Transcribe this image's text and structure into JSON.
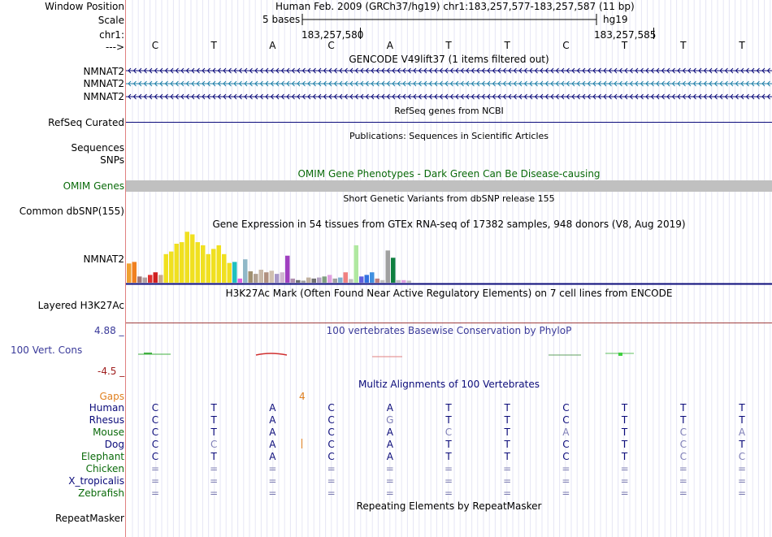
{
  "header": {
    "window_position_label": "Window Position",
    "scale_label": "Scale",
    "chrom_label": "chr1:",
    "arrow_label": "--->",
    "assembly_text": "Human Feb. 2009 (GRCh37/hg19)   chr1:183,257,577-183,257,587 (11 bp)",
    "scale_text": "5 bases",
    "scale_db": "hg19",
    "pos_left": "183,257,580",
    "pos_right": "183,257,585",
    "bases": [
      "C",
      "T",
      "A",
      "C",
      "A",
      "T",
      "T",
      "C",
      "T",
      "T",
      "T"
    ]
  },
  "gencode": {
    "title": "GENCODE V49lift37 (1 items filtered out)",
    "rows": [
      {
        "label": "NMNAT2",
        "color": "#0b0b7a"
      },
      {
        "label": "NMNAT2",
        "color": "#1e7fa8"
      },
      {
        "label": "NMNAT2",
        "color": "#0b0b7a"
      }
    ]
  },
  "refseq": {
    "title": "RefSeq genes from NCBI",
    "label": "RefSeq Curated"
  },
  "publications": {
    "title": "Publications: Sequences in Scientific Articles",
    "label1": "Sequences",
    "label2": "SNPs"
  },
  "omim": {
    "title": "OMIM Gene Phenotypes - Dark Green Can Be Disease-causing",
    "label": "OMIM Genes"
  },
  "dbsnp": {
    "title": "Short Genetic Variants from dbSNP release 155",
    "label": "Common dbSNP(155)"
  },
  "gtex": {
    "title": "Gene Expression in 54 tissues from GTEx RNA-seq of 17382 samples, 948 donors (V8, Aug 2019)",
    "label": "NMNAT2",
    "bars": [
      {
        "v": 0.37,
        "c": "#f0a030"
      },
      {
        "v": 0.4,
        "c": "#f08020"
      },
      {
        "v": 0.12,
        "c": "#a07878"
      },
      {
        "v": 0.1,
        "c": "#b0a0a0"
      },
      {
        "v": 0.15,
        "c": "#e03030"
      },
      {
        "v": 0.2,
        "c": "#d02020"
      },
      {
        "v": 0.15,
        "c": "#c8a890"
      },
      {
        "v": 0.55,
        "c": "#f0e020"
      },
      {
        "v": 0.6,
        "c": "#f0e020"
      },
      {
        "v": 0.75,
        "c": "#f0e020"
      },
      {
        "v": 0.78,
        "c": "#f0e020"
      },
      {
        "v": 0.98,
        "c": "#f0e020"
      },
      {
        "v": 0.93,
        "c": "#f0e020"
      },
      {
        "v": 0.78,
        "c": "#f0e020"
      },
      {
        "v": 0.72,
        "c": "#f0e020"
      },
      {
        "v": 0.55,
        "c": "#f0e020"
      },
      {
        "v": 0.65,
        "c": "#f0e020"
      },
      {
        "v": 0.72,
        "c": "#f0e020"
      },
      {
        "v": 0.55,
        "c": "#f0e020"
      },
      {
        "v": 0.38,
        "c": "#f0e020"
      },
      {
        "v": 0.4,
        "c": "#20c0c0"
      },
      {
        "v": 0.08,
        "c": "#e060e0"
      },
      {
        "v": 0.45,
        "c": "#90b8c8"
      },
      {
        "v": 0.22,
        "c": "#a09070"
      },
      {
        "v": 0.17,
        "c": "#b0a090"
      },
      {
        "v": 0.25,
        "c": "#c8b8a8"
      },
      {
        "v": 0.2,
        "c": "#b09080"
      },
      {
        "v": 0.23,
        "c": "#d0c0b0"
      },
      {
        "v": 0.17,
        "c": "#a898c8"
      },
      {
        "v": 0.2,
        "c": "#d0b8d0"
      },
      {
        "v": 0.52,
        "c": "#a040c0"
      },
      {
        "v": 0.08,
        "c": "#b090b0"
      },
      {
        "v": 0.05,
        "c": "#707070"
      },
      {
        "v": 0.04,
        "c": "#a0a0a0"
      },
      {
        "v": 0.1,
        "c": "#c0b0a0"
      },
      {
        "v": 0.08,
        "c": "#707070"
      },
      {
        "v": 0.1,
        "c": "#b0a0c0"
      },
      {
        "v": 0.12,
        "c": "#80a080"
      },
      {
        "v": 0.15,
        "c": "#e0a0e0"
      },
      {
        "v": 0.08,
        "c": "#a0a0a0"
      },
      {
        "v": 0.1,
        "c": "#80b0d0"
      },
      {
        "v": 0.2,
        "c": "#f08080"
      },
      {
        "v": 0.07,
        "c": "#c0c0c0"
      },
      {
        "v": 0.72,
        "c": "#b0e8a0"
      },
      {
        "v": 0.12,
        "c": "#6060e0"
      },
      {
        "v": 0.15,
        "c": "#3070e0"
      },
      {
        "v": 0.2,
        "c": "#4090e0"
      },
      {
        "v": 0.08,
        "c": "#c08080"
      },
      {
        "v": 0.05,
        "c": "#c0c0c0"
      },
      {
        "v": 0.62,
        "c": "#a0a0a0"
      },
      {
        "v": 0.48,
        "c": "#108040"
      },
      {
        "v": 0.05,
        "c": "#c0c0c0"
      },
      {
        "v": 0.05,
        "c": "#e0a0e0"
      },
      {
        "v": 0.04,
        "c": "#c0c0c0"
      }
    ]
  },
  "h3k27ac": {
    "title": "H3K27Ac Mark (Often Found Near Active Regulatory Elements) on 7 cell lines from ENCODE",
    "label": "Layered H3K27Ac"
  },
  "phylop": {
    "title": "100 vertebrates Basewise Conservation by PhyloP",
    "label": "100 Vert. Cons",
    "max": "4.88 _",
    "min": "-4.5 _"
  },
  "multiz": {
    "title": "Multiz Alignments of 100 Vertebrates",
    "gaps_label": "Gaps",
    "gap_value": "4",
    "species": [
      {
        "name": "Human",
        "color": "#0b0b7a",
        "bases": [
          "C",
          "T",
          "A",
          "C",
          "A",
          "T",
          "T",
          "C",
          "T",
          "T",
          "T"
        ]
      },
      {
        "name": "Rhesus",
        "color": "#0b0b7a",
        "bases": [
          "C",
          "T",
          "A",
          "C",
          "G",
          "T",
          "T",
          "C",
          "T",
          "T",
          "T"
        ]
      },
      {
        "name": "Mouse",
        "color": "#0a6a0a",
        "bases": [
          "C",
          "T",
          "A",
          "C",
          "A",
          "C",
          "T",
          "A",
          "T",
          "C",
          "A"
        ]
      },
      {
        "name": "Dog",
        "color": "#0b0b7a",
        "bases": [
          "C",
          "C",
          "A",
          "C",
          "A",
          "T",
          "T",
          "C",
          "T",
          "C",
          "T"
        ]
      },
      {
        "name": "Elephant",
        "color": "#0a6a0a",
        "bases": [
          "C",
          "T",
          "A",
          "C",
          "A",
          "T",
          "T",
          "C",
          "T",
          "C",
          "C"
        ]
      },
      {
        "name": "Chicken",
        "color": "#0a6a0a",
        "bases": [
          "=",
          "=",
          "=",
          "=",
          "=",
          "=",
          "=",
          "=",
          "=",
          "=",
          "="
        ]
      },
      {
        "name": "X_tropicalis",
        "color": "#0b0b7a",
        "bases": [
          "=",
          "=",
          "=",
          "=",
          "=",
          "=",
          "=",
          "=",
          "=",
          "=",
          "="
        ]
      },
      {
        "name": "Zebrafish",
        "color": "#0a6a0a",
        "bases": [
          "=",
          "=",
          "=",
          "=",
          "=",
          "=",
          "=",
          "=",
          "=",
          "=",
          "="
        ]
      }
    ]
  },
  "repeatmasker": {
    "title": "Repeating Elements by RepeatMasker",
    "label": "RepeatMasker"
  }
}
